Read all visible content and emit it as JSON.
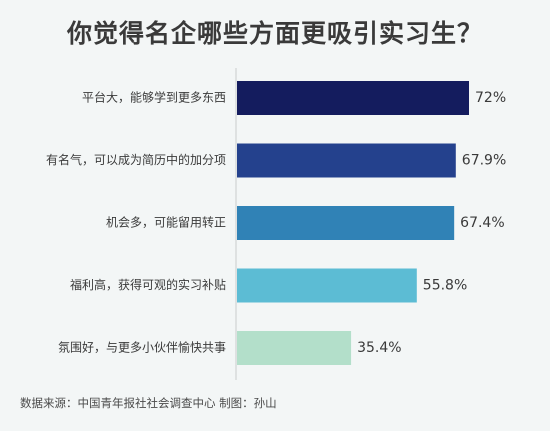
{
  "chart_data": {
    "type": "bar",
    "orientation": "horizontal",
    "title": "你觉得名企哪些方面更吸引实习生？",
    "categories": [
      "平台大，能够学到更多东西",
      "有名气，可以成为简历中的加分项",
      "机会多，可能留用转正",
      "福利高，获得可观的实习补贴",
      "氛围好，与更多小伙伴愉快共事"
    ],
    "values": [
      72,
      67.9,
      67.4,
      55.8,
      35.4
    ],
    "value_labels": [
      "72%",
      "67.9%",
      "67.4%",
      "55.8%",
      "35.4%"
    ],
    "unit": "%",
    "colors": [
      "#141c5e",
      "#24418d",
      "#3082b6",
      "#5cbcd4",
      "#b3dfca"
    ],
    "xlim": [
      0,
      72
    ],
    "grid": false,
    "legend": "none"
  },
  "source": "数据来源：中国青年报社社会调查中心 制图：孙山"
}
